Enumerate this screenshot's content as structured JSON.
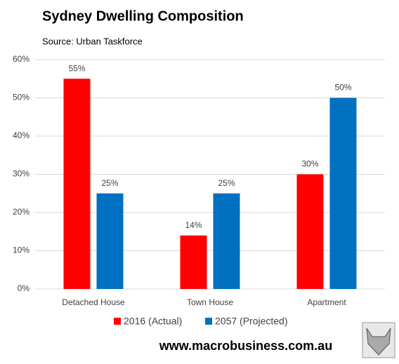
{
  "chart_data": {
    "type": "bar",
    "title": "Sydney Dwelling Composition",
    "subtitle": "Source: Urban Taskforce",
    "categories": [
      "Detached House",
      "Town House",
      "Apartment"
    ],
    "series": [
      {
        "name": "2016 (Actual)",
        "color": "#ff0000",
        "values": [
          55,
          14,
          30
        ],
        "value_labels": [
          "55%",
          "14%",
          "30%"
        ]
      },
      {
        "name": "2057 (Projected)",
        "color": "#0070c0",
        "values": [
          25,
          25,
          50
        ],
        "value_labels": [
          "25%",
          "25%",
          "50%"
        ]
      }
    ],
    "ylim": [
      0,
      60
    ],
    "yticks": [
      {
        "value": 0,
        "label": "0%"
      },
      {
        "value": 10,
        "label": "10%"
      },
      {
        "value": 20,
        "label": "20%"
      },
      {
        "value": 30,
        "label": "30%"
      },
      {
        "value": 40,
        "label": "40%"
      },
      {
        "value": 50,
        "label": "50%"
      },
      {
        "value": 60,
        "label": "60%"
      }
    ],
    "grid": true,
    "legend": "bottom",
    "watermark": "www.macrobusiness.com.au"
  }
}
